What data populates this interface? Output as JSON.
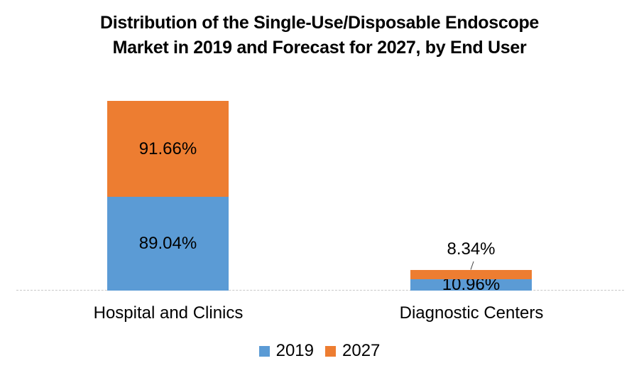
{
  "chart_data": {
    "type": "bar",
    "subtype": "stacked",
    "title": "Distribution of the Single-Use/Disposable Endoscope Market in 2019 and Forecast for 2027, by End User",
    "title_lines": [
      "Distribution of the Single-Use/Disposable Endoscope",
      "Market in 2019 and Forecast for 2027, by End User"
    ],
    "categories": [
      "Hospital and Clinics",
      "Diagnostic Centers"
    ],
    "series": [
      {
        "name": "2019",
        "color": "#5B9BD5",
        "values": [
          89.04,
          10.96
        ],
        "labels": [
          "89.04%",
          "10.96%"
        ]
      },
      {
        "name": "2027",
        "color": "#ED7D31",
        "values": [
          91.66,
          8.34
        ],
        "labels": [
          "91.66%",
          "8.34%"
        ]
      }
    ],
    "ylabel": "",
    "xlabel": "",
    "grid": false,
    "y_axis_visible": false,
    "legend_position": "bottom",
    "text_color": "#000000",
    "background_color": "#FFFFFF",
    "axis": {
      "color": "#C9C9C9",
      "style": "dashed"
    },
    "leader_line_color": "#404040"
  }
}
